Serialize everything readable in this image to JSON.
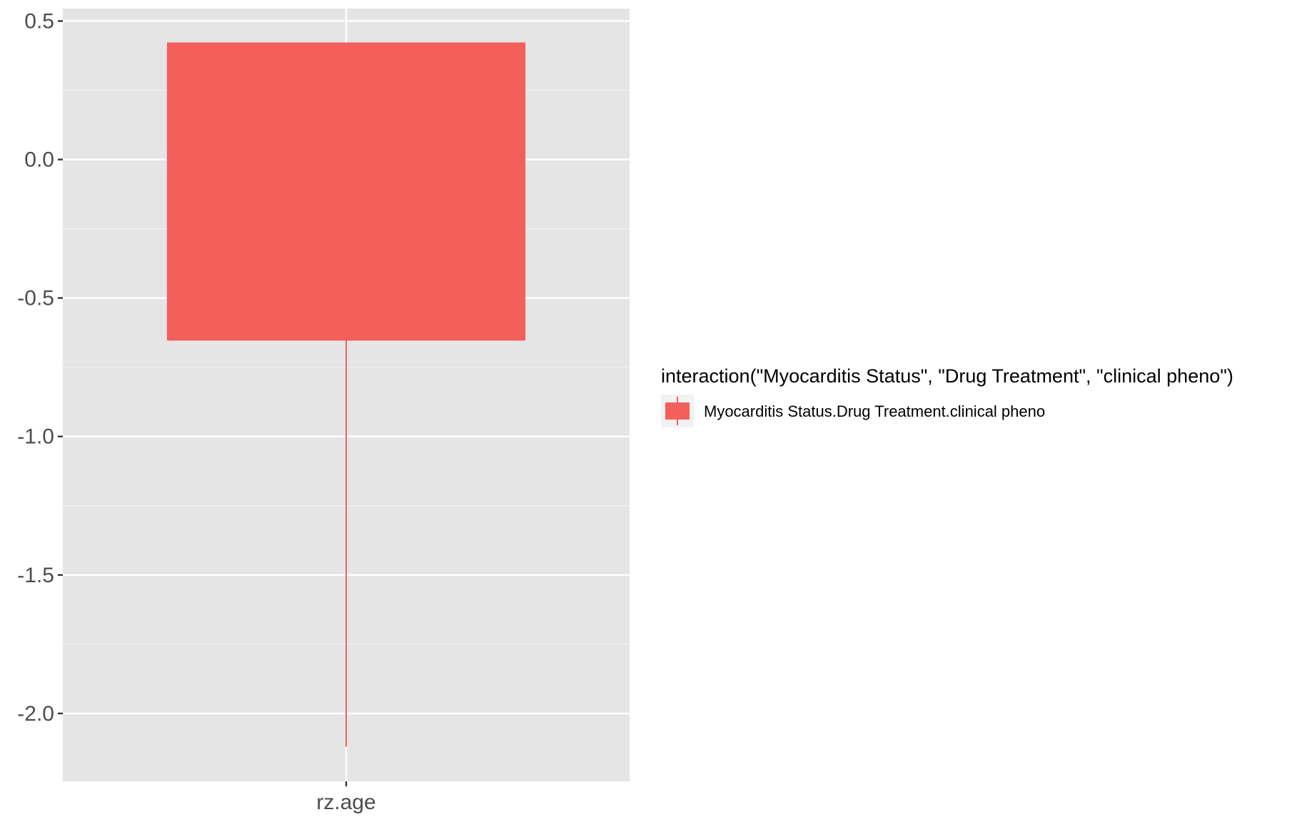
{
  "chart_data": {
    "type": "boxplot",
    "categories": [
      "rz.age"
    ],
    "series": [
      {
        "name": "Myocarditis Status.Drug Treatment.clinical pheno",
        "color": "#F35F5B",
        "boxes": [
          {
            "category": "rz.age",
            "lower_whisker": -2.12,
            "q1": -0.65,
            "median": -0.65,
            "q3": 0.42,
            "upper_whisker": 0.42
          }
        ]
      }
    ],
    "yticks": [
      0.5,
      0.0,
      -0.5,
      -1.0,
      -1.5,
      -2.0
    ],
    "ytick_labels": [
      "0.5",
      "0.0",
      "-0.5",
      "-1.0",
      "-1.5",
      "-2.0"
    ],
    "ylim": [
      -2.245,
      0.545
    ],
    "xlabel": "",
    "ylabel": "",
    "grid": true,
    "panel_background": "#E5E5E5",
    "legend": {
      "title": "interaction(\"Myocarditis Status\", \"Drug Treatment\", \"clinical pheno\")",
      "entries": [
        "Myocarditis Status.Drug Treatment.clinical pheno"
      ],
      "position": "right"
    }
  }
}
